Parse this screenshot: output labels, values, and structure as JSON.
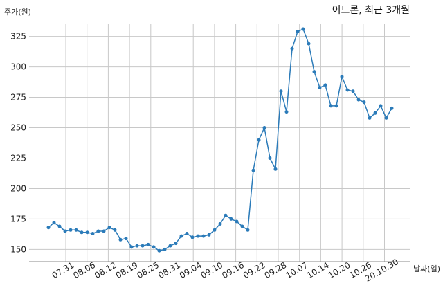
{
  "chart_data": {
    "type": "line",
    "title": "이트론, 최근 3개월",
    "xlabel": "날짜(일)",
    "ylabel": "주가(원)",
    "ylim": [
      140,
      335
    ],
    "yticks": [
      150,
      175,
      200,
      225,
      250,
      275,
      300,
      325
    ],
    "grid": true,
    "line_color": "#2b7bb9",
    "x_tick_labels": [
      "07.31",
      "08.06",
      "08.12",
      "08.19",
      "08.25",
      "08.31",
      "09.04",
      "09.10",
      "09.16",
      "09.22",
      "09.28",
      "10.07",
      "10.14",
      "10.20",
      "10.26",
      "20.10.30"
    ],
    "series": [
      {
        "values": [
          168,
          172,
          169,
          165,
          166,
          166,
          164,
          164,
          163,
          165,
          165,
          168,
          166,
          158,
          159,
          152,
          153,
          153,
          154,
          152,
          149,
          150,
          153,
          155,
          161,
          163,
          160,
          161,
          161,
          162,
          166,
          171,
          178,
          175,
          173,
          169,
          166,
          215,
          240,
          250,
          225,
          216,
          280,
          263,
          315,
          329,
          331,
          319,
          296,
          283,
          285,
          268,
          268,
          292,
          281,
          280,
          273,
          271,
          258,
          262,
          268,
          258,
          266
        ]
      }
    ]
  }
}
